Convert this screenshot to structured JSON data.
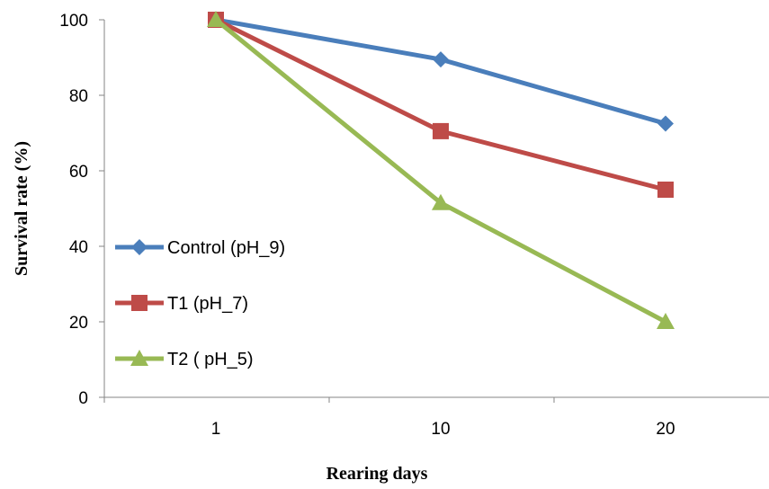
{
  "chart_data": {
    "type": "line",
    "title": "",
    "xlabel": "Rearing days",
    "ylabel": "Survival rate (%)",
    "categories": [
      "1",
      "10",
      "20"
    ],
    "ylim": [
      0,
      100
    ],
    "yticks": [
      "0",
      "20",
      "40",
      "60",
      "80",
      "100"
    ],
    "grid": false,
    "legend_position": "left-middle",
    "series": [
      {
        "name": "Control (pH_9)",
        "values": [
          100,
          89.5,
          72.5
        ],
        "color": "#4a7ebb",
        "marker": "diamond"
      },
      {
        "name": "T1 (pH_7)",
        "values": [
          100,
          70.5,
          55
        ],
        "color": "#be4b48",
        "marker": "square"
      },
      {
        "name": "T2 ( pH_5)",
        "values": [
          100,
          51.5,
          20
        ],
        "color": "#98b954",
        "marker": "triangle"
      }
    ]
  }
}
